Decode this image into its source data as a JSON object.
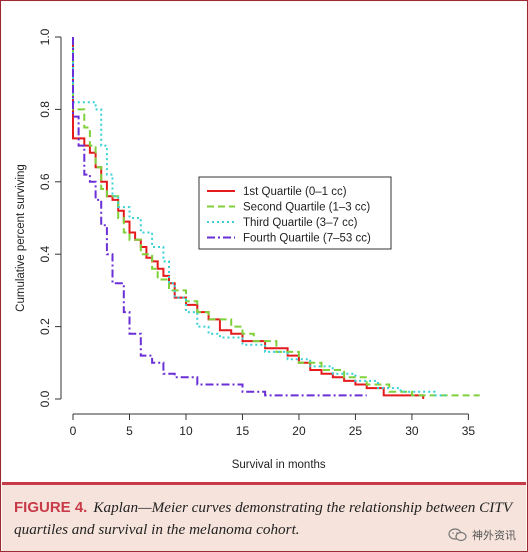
{
  "chart_data": {
    "type": "line",
    "title": "",
    "xlabel": "Survival in months",
    "ylabel": "Cumulative percent surviving",
    "xlim": [
      0,
      37
    ],
    "ylim": [
      0,
      1.0
    ],
    "xticks": [
      0,
      5,
      10,
      15,
      20,
      25,
      30,
      35
    ],
    "yticks": [
      0.0,
      0.2,
      0.4,
      0.6,
      0.8,
      1.0
    ],
    "grid": false,
    "legend_position": "center",
    "series": [
      {
        "name": "1st Quartile (0–1 cc)",
        "color": "#e41a1c",
        "style": "solid",
        "points": [
          [
            0,
            1.0
          ],
          [
            0,
            0.72
          ],
          [
            1,
            0.72
          ],
          [
            1,
            0.7
          ],
          [
            1.5,
            0.7
          ],
          [
            1.5,
            0.68
          ],
          [
            2,
            0.68
          ],
          [
            2,
            0.64
          ],
          [
            2.5,
            0.64
          ],
          [
            2.5,
            0.6
          ],
          [
            3,
            0.6
          ],
          [
            3,
            0.56
          ],
          [
            3.5,
            0.56
          ],
          [
            3.5,
            0.55
          ],
          [
            4,
            0.55
          ],
          [
            4,
            0.52
          ],
          [
            4.5,
            0.52
          ],
          [
            4.5,
            0.49
          ],
          [
            5,
            0.49
          ],
          [
            5,
            0.46
          ],
          [
            5.5,
            0.46
          ],
          [
            5.5,
            0.44
          ],
          [
            6,
            0.44
          ],
          [
            6,
            0.42
          ],
          [
            6.5,
            0.42
          ],
          [
            6.5,
            0.39
          ],
          [
            7,
            0.39
          ],
          [
            7,
            0.38
          ],
          [
            7.5,
            0.38
          ],
          [
            7.5,
            0.36
          ],
          [
            8,
            0.36
          ],
          [
            8,
            0.34
          ],
          [
            8.5,
            0.34
          ],
          [
            8.5,
            0.32
          ],
          [
            9,
            0.32
          ],
          [
            9,
            0.28
          ],
          [
            10,
            0.28
          ],
          [
            10,
            0.26
          ],
          [
            11,
            0.26
          ],
          [
            11,
            0.24
          ],
          [
            12,
            0.24
          ],
          [
            12,
            0.22
          ],
          [
            13,
            0.22
          ],
          [
            13,
            0.19
          ],
          [
            14,
            0.19
          ],
          [
            14,
            0.18
          ],
          [
            15,
            0.18
          ],
          [
            15,
            0.16
          ],
          [
            17,
            0.16
          ],
          [
            17,
            0.14
          ],
          [
            19,
            0.14
          ],
          [
            19,
            0.12
          ],
          [
            20,
            0.12
          ],
          [
            20,
            0.1
          ],
          [
            21,
            0.1
          ],
          [
            21,
            0.08
          ],
          [
            22,
            0.08
          ],
          [
            22,
            0.07
          ],
          [
            23,
            0.07
          ],
          [
            23,
            0.06
          ],
          [
            24,
            0.06
          ],
          [
            24,
            0.05
          ],
          [
            25,
            0.05
          ],
          [
            25,
            0.04
          ],
          [
            26,
            0.04
          ],
          [
            26,
            0.03
          ],
          [
            27.5,
            0.03
          ],
          [
            27.5,
            0.01
          ],
          [
            31,
            0.01
          ],
          [
            31,
            0.0
          ]
        ]
      },
      {
        "name": "Second Quartile (1–3 cc)",
        "color": "#7fd13b",
        "style": "dashed",
        "points": [
          [
            0,
            1.0
          ],
          [
            0,
            0.8
          ],
          [
            1,
            0.8
          ],
          [
            1,
            0.75
          ],
          [
            1.5,
            0.75
          ],
          [
            1.5,
            0.7
          ],
          [
            2,
            0.7
          ],
          [
            2,
            0.64
          ],
          [
            2.5,
            0.64
          ],
          [
            2.5,
            0.58
          ],
          [
            3,
            0.58
          ],
          [
            3,
            0.56
          ],
          [
            4,
            0.56
          ],
          [
            4,
            0.5
          ],
          [
            4.5,
            0.5
          ],
          [
            4.5,
            0.46
          ],
          [
            5,
            0.46
          ],
          [
            5,
            0.44
          ],
          [
            6,
            0.44
          ],
          [
            6,
            0.4
          ],
          [
            7,
            0.4
          ],
          [
            7,
            0.36
          ],
          [
            7.5,
            0.36
          ],
          [
            7.5,
            0.33
          ],
          [
            8.5,
            0.33
          ],
          [
            8.5,
            0.3
          ],
          [
            10,
            0.3
          ],
          [
            10,
            0.27
          ],
          [
            11,
            0.27
          ],
          [
            11,
            0.24
          ],
          [
            12,
            0.24
          ],
          [
            12,
            0.22
          ],
          [
            14,
            0.22
          ],
          [
            14,
            0.2
          ],
          [
            15,
            0.2
          ],
          [
            15,
            0.18
          ],
          [
            16,
            0.18
          ],
          [
            16,
            0.16
          ],
          [
            18,
            0.16
          ],
          [
            18,
            0.13
          ],
          [
            20,
            0.13
          ],
          [
            20,
            0.1
          ],
          [
            22,
            0.1
          ],
          [
            22,
            0.08
          ],
          [
            24,
            0.08
          ],
          [
            24,
            0.06
          ],
          [
            26,
            0.06
          ],
          [
            26,
            0.04
          ],
          [
            28,
            0.04
          ],
          [
            28,
            0.02
          ],
          [
            30,
            0.02
          ],
          [
            30,
            0.01
          ],
          [
            36,
            0.01
          ]
        ]
      },
      {
        "name": "Third Quartile (3–7 cc)",
        "color": "#39d0d6",
        "style": "dotted",
        "points": [
          [
            0,
            1.0
          ],
          [
            0,
            0.82
          ],
          [
            2,
            0.82
          ],
          [
            2,
            0.8
          ],
          [
            2.5,
            0.8
          ],
          [
            2.5,
            0.7
          ],
          [
            3,
            0.7
          ],
          [
            3,
            0.62
          ],
          [
            3.5,
            0.62
          ],
          [
            3.5,
            0.56
          ],
          [
            4,
            0.56
          ],
          [
            4,
            0.53
          ],
          [
            5,
            0.53
          ],
          [
            5,
            0.5
          ],
          [
            6,
            0.5
          ],
          [
            6,
            0.46
          ],
          [
            7,
            0.46
          ],
          [
            7,
            0.42
          ],
          [
            8,
            0.42
          ],
          [
            8,
            0.38
          ],
          [
            8.5,
            0.38
          ],
          [
            8.5,
            0.32
          ],
          [
            9,
            0.32
          ],
          [
            9,
            0.28
          ],
          [
            10,
            0.28
          ],
          [
            10,
            0.24
          ],
          [
            11,
            0.24
          ],
          [
            11,
            0.2
          ],
          [
            12,
            0.2
          ],
          [
            12,
            0.18
          ],
          [
            13,
            0.18
          ],
          [
            13,
            0.17
          ],
          [
            15,
            0.17
          ],
          [
            15,
            0.15
          ],
          [
            17,
            0.15
          ],
          [
            17,
            0.13
          ],
          [
            19,
            0.13
          ],
          [
            19,
            0.11
          ],
          [
            21,
            0.11
          ],
          [
            21,
            0.09
          ],
          [
            23,
            0.09
          ],
          [
            23,
            0.07
          ],
          [
            25,
            0.07
          ],
          [
            25,
            0.05
          ],
          [
            27,
            0.05
          ],
          [
            27,
            0.03
          ],
          [
            29,
            0.03
          ],
          [
            29,
            0.02
          ],
          [
            32,
            0.02
          ],
          [
            32,
            0.01
          ],
          [
            33,
            0.01
          ]
        ]
      },
      {
        "name": "Fourth Quartile (7–53 cc)",
        "color": "#6a2fd6",
        "style": "dashdot",
        "points": [
          [
            0,
            1.0
          ],
          [
            0,
            0.78
          ],
          [
            0.5,
            0.78
          ],
          [
            0.5,
            0.7
          ],
          [
            1,
            0.7
          ],
          [
            1,
            0.62
          ],
          [
            1.5,
            0.62
          ],
          [
            1.5,
            0.6
          ],
          [
            2,
            0.6
          ],
          [
            2,
            0.55
          ],
          [
            2.5,
            0.55
          ],
          [
            2.5,
            0.48
          ],
          [
            3,
            0.48
          ],
          [
            3,
            0.4
          ],
          [
            3.5,
            0.4
          ],
          [
            3.5,
            0.32
          ],
          [
            4.5,
            0.32
          ],
          [
            4.5,
            0.24
          ],
          [
            5,
            0.24
          ],
          [
            5,
            0.18
          ],
          [
            6,
            0.18
          ],
          [
            6,
            0.12
          ],
          [
            7,
            0.12
          ],
          [
            7,
            0.1
          ],
          [
            8,
            0.1
          ],
          [
            8,
            0.07
          ],
          [
            9,
            0.07
          ],
          [
            9,
            0.06
          ],
          [
            11,
            0.06
          ],
          [
            11,
            0.04
          ],
          [
            15,
            0.04
          ],
          [
            15,
            0.02
          ],
          [
            17,
            0.02
          ],
          [
            17,
            0.01
          ],
          [
            26,
            0.01
          ]
        ]
      }
    ]
  },
  "caption": {
    "label": "FIGURE 4.",
    "text": "Kaplan—Meier curves demonstrating the relationship between CITV quartiles and survival in the melanoma cohort."
  },
  "watermark": {
    "text": "神外资讯",
    "icon": "wechat-icon"
  }
}
